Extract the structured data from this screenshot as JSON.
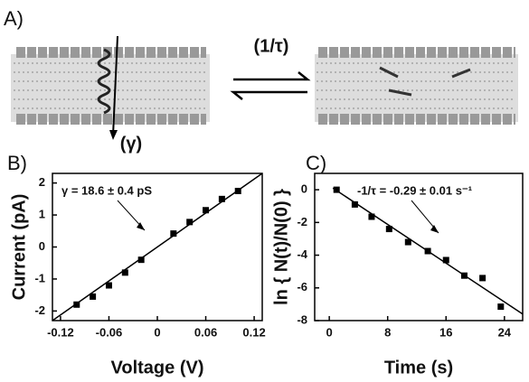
{
  "panel_a": {
    "label": "A)",
    "rate_label": "(1/τ)",
    "conductance_label": "(γ)"
  },
  "chart_data": [
    {
      "type": "scatter",
      "panel": "B)",
      "xlabel": "Voltage (V)",
      "ylabel": "Current (pA)",
      "annotation": "γ = 18.6 ± 0.4 pS",
      "x": [
        -0.1,
        -0.08,
        -0.06,
        -0.04,
        -0.02,
        0.02,
        0.04,
        0.06,
        0.08,
        0.1
      ],
      "values": [
        -1.8,
        -1.55,
        -1.2,
        -0.8,
        -0.4,
        0.42,
        0.78,
        1.15,
        1.5,
        1.75
      ],
      "fit": {
        "x": [
          -0.13,
          0.13
        ],
        "y": [
          -2.3,
          2.3
        ]
      },
      "xlim": [
        -0.13,
        0.13
      ],
      "xticks": [
        -0.12,
        -0.06,
        {
          "value": 0,
          "label": "0"
        },
        0.06,
        0.12
      ],
      "ylim": [
        -2.3,
        2.3
      ],
      "yticks": [
        -2,
        -1,
        0,
        1,
        2
      ],
      "color": "#000000"
    },
    {
      "type": "scatter",
      "panel": "C)",
      "xlabel": "Time (s)",
      "ylabel": "ln { N(t)/N(0) }",
      "annotation": "-1/τ = -0.29 ± 0.01 s⁻¹",
      "x": [
        1,
        3.5,
        5.8,
        8.2,
        10.8,
        13.5,
        16,
        18.5,
        21,
        23.5
      ],
      "values": [
        0,
        -0.9,
        -1.65,
        -2.4,
        -3.2,
        -3.75,
        -4.3,
        -5.25,
        -5.4,
        -7.15
      ],
      "fit": {
        "x": [
          0.5,
          26.5
        ],
        "y": [
          0.1,
          -7.6
        ]
      },
      "xlim": [
        -2,
        26.5
      ],
      "xticks": [
        0,
        8,
        16,
        24
      ],
      "ylim": [
        -8,
        1
      ],
      "yticks": [
        0,
        -2,
        -4,
        -6,
        -8
      ],
      "color": "#000000"
    }
  ]
}
